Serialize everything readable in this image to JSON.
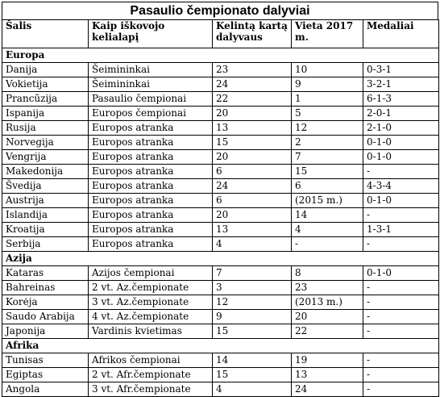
{
  "title": "Pasaulio čempionato dalyviai",
  "headers": [
    "Šalis",
    "Kaip iškovojo kelialapį",
    "Kelintą kartą dalyvaus",
    "Vieta 2017 m.",
    "Medaliai"
  ],
  "sections": [
    {
      "name": "Europa",
      "rows": [
        [
          "Danija",
          "Šeimininkai",
          "23",
          "10",
          "0-3-1"
        ],
        [
          "Vokietija",
          "Šeimininkai",
          "24",
          "9",
          "3-2-1"
        ],
        [
          "Prancūzija",
          "Pasaulio čempionai",
          "22",
          "1",
          "6-1-3"
        ],
        [
          "Ispanija",
          "Europos čempionai",
          "20",
          "5",
          "2-0-1"
        ],
        [
          "Rusija",
          "Europos atranka",
          "13",
          "12",
          "2-1-0"
        ],
        [
          "Norvegija",
          "Europos atranka",
          "15",
          "2",
          "0-1-0"
        ],
        [
          "Vengrija",
          "Europos atranka",
          "20",
          "7",
          "0-1-0"
        ],
        [
          "Makedonija",
          "Europos atranka",
          "6",
          "15",
          "-"
        ],
        [
          "Švedija",
          "Europos atranka",
          "24",
          "6",
          "4-3-4"
        ],
        [
          "Austrija",
          "Europos atranka",
          "6",
          "(2015 m.)",
          "0-1-0"
        ],
        [
          "Islandija",
          "Europos atranka",
          "20",
          "14",
          "-"
        ],
        [
          "Kroatija",
          "Europos atranka",
          "13",
          "4",
          "1-3-1"
        ],
        [
          "Serbija",
          "Europos atranka",
          "4",
          "-",
          "-"
        ]
      ]
    },
    {
      "name": "Azija",
      "rows": [
        [
          "Kataras",
          "Azijos čempionai",
          "7",
          "8",
          "0-1-0"
        ],
        [
          "Bahreinas",
          "2 vt. Az.čempionate",
          "3",
          "23",
          "-"
        ],
        [
          "Korėja",
          "3 vt. Az.čempionate",
          "12",
          "(2013 m.)",
          "-"
        ],
        [
          "Saudo Arabija",
          "4 vt. Az.čempionate",
          "9",
          "20",
          "-"
        ],
        [
          "Japonija",
          "Vardinis kvietimas",
          "15",
          "22",
          "-"
        ]
      ]
    },
    {
      "name": "Afrika",
      "rows": [
        [
          "Tunisas",
          "Afrikos čempionai",
          "14",
          "19",
          "-"
        ],
        [
          "Egiptas",
          "2 vt. Afr.čempionate",
          "15",
          "13",
          "-"
        ],
        [
          "Angola",
          "3 vt. Afr.čempionate",
          "4",
          "24",
          "-"
        ]
      ]
    }
  ]
}
